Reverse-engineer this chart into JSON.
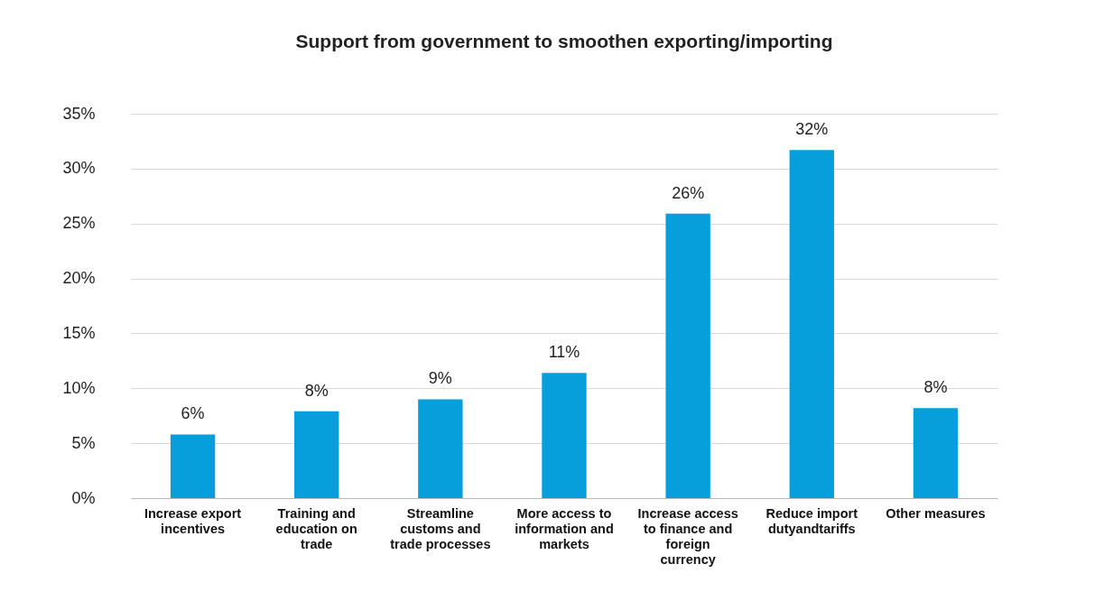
{
  "chart_data": {
    "type": "bar",
    "title": "Support from government to smoothen exporting/importing",
    "categories": [
      "Increase export incentives",
      "Training and education on trade",
      "Streamline customs and trade processes",
      "More access to information and markets",
      "Increase access to finance and foreign currency",
      "Reduce import dutyandtariffs",
      "Other measures"
    ],
    "values": [
      5.8,
      7.9,
      9.0,
      11.4,
      25.9,
      31.7,
      8.2
    ],
    "value_labels": [
      "6%",
      "8%",
      "9%",
      "11%",
      "26%",
      "32%",
      "8%"
    ],
    "color": "#069fdc",
    "ylim": [
      0,
      35
    ],
    "yticks": [
      {
        "value": 0,
        "label": "0%"
      },
      {
        "value": 5,
        "label": "5%"
      },
      {
        "value": 10,
        "label": "10%"
      },
      {
        "value": 15,
        "label": "15%"
      },
      {
        "value": 20,
        "label": "20%"
      },
      {
        "value": 25,
        "label": "25%"
      },
      {
        "value": 30,
        "label": "30%"
      },
      {
        "value": 35,
        "label": "35%"
      }
    ],
    "grid": "y"
  }
}
